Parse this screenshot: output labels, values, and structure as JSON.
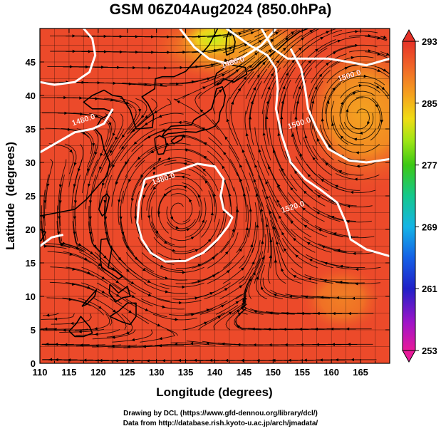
{
  "title": "GSM 06Z04Aug2024 (850.0hPa)",
  "x_axis": {
    "label": "Longitude (degrees)",
    "range": [
      110,
      170
    ],
    "ticks": [
      "110",
      "115",
      "120",
      "125",
      "130",
      "135",
      "140",
      "145",
      "150",
      "155",
      "160",
      "165"
    ],
    "tick_values": [
      110,
      115,
      120,
      125,
      130,
      135,
      140,
      145,
      150,
      155,
      160,
      165
    ]
  },
  "y_axis": {
    "label": "Latitude  (degrees)",
    "range": [
      0,
      50
    ],
    "ticks": [
      "0",
      "5",
      "10",
      "15",
      "20",
      "25",
      "30",
      "35",
      "40",
      "45"
    ],
    "tick_values": [
      0,
      5,
      10,
      15,
      20,
      25,
      30,
      35,
      40,
      45
    ]
  },
  "colorbar": {
    "ticks": [
      "293",
      "285",
      "277",
      "269",
      "261",
      "253"
    ],
    "tick_values": [
      293,
      285,
      277,
      269,
      261,
      253
    ],
    "range": [
      253,
      293
    ],
    "colors": [
      "#e8199a",
      "#8a14c8",
      "#1428c8",
      "#1478f0",
      "#14c8e6",
      "#14c878",
      "#3cc814",
      "#b4e614",
      "#f0dc14",
      "#f5a01e",
      "#f07828",
      "#eb4b28",
      "#e63228"
    ]
  },
  "contours": [
    {
      "label": "1480.0",
      "lon": 131.3,
      "lat": 27.2
    },
    {
      "label": "1480.0",
      "lon": 143.2,
      "lat": 44.6
    },
    {
      "label": "1480.0",
      "lon": 117.6,
      "lat": 36.0
    },
    {
      "label": "1500.0",
      "lon": 163.2,
      "lat": 42.6
    },
    {
      "label": "1500.0",
      "lon": 154.6,
      "lat": 35.5
    },
    {
      "label": "1520.0",
      "lon": 153.5,
      "lat": 23.0
    }
  ],
  "fill_colors": {
    "background": "#ec4a2a",
    "warm": "#f07a24",
    "warmer": "#f5a321",
    "yellow": "#e6e61e",
    "lime": "#aee619",
    "ocean_red": "#e8402c"
  },
  "credits": [
    "Drawing by DCL (https://www.gfd-dennou.org/library/dcl/)",
    "Data from http://database.rish.kyoto-u.ac.jp/arch/jmadata/"
  ]
}
